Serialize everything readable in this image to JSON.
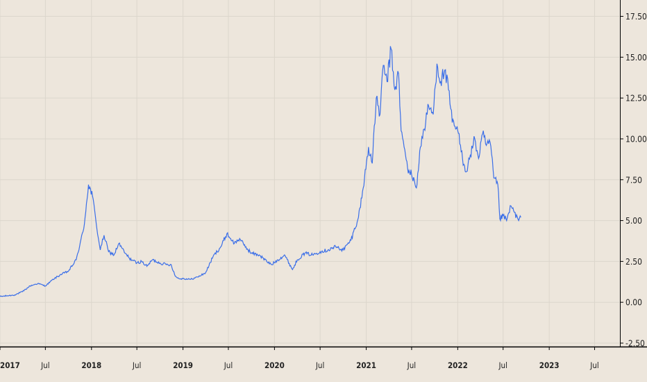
{
  "colors": {
    "background": "#ede6dc",
    "line": "#3a6ee8",
    "grid": "#dcd6cc",
    "axis": "#000000",
    "text": "#222222"
  },
  "chart_data": {
    "type": "line",
    "title": "",
    "xlabel": "",
    "ylabel": "",
    "grid": true,
    "y_axis_position": "right",
    "ylim": [
      -2.5,
      18.5
    ],
    "xlim": [
      "2017-01-01",
      "2023-10-10"
    ],
    "y_ticks": [
      "17.50",
      "15.00",
      "12.50",
      "10.00",
      "7.50",
      "5.00",
      "2.50",
      "0.00",
      "-2.50"
    ],
    "y_tick_values": [
      17.5,
      15,
      12.5,
      10,
      7.5,
      5,
      2.5,
      0,
      -2.5
    ],
    "x_ticks": [
      {
        "label": "2017",
        "date": "2017-01-01",
        "major": true
      },
      {
        "label": "Jul",
        "date": "2017-07-01",
        "major": false
      },
      {
        "label": "2018",
        "date": "2018-01-01",
        "major": true
      },
      {
        "label": "Jul",
        "date": "2018-07-01",
        "major": false
      },
      {
        "label": "2019",
        "date": "2019-01-01",
        "major": true
      },
      {
        "label": "Jul",
        "date": "2019-07-01",
        "major": false
      },
      {
        "label": "2020",
        "date": "2020-01-01",
        "major": true
      },
      {
        "label": "Jul",
        "date": "2020-07-01",
        "major": false
      },
      {
        "label": "2021",
        "date": "2021-01-01",
        "major": true
      },
      {
        "label": "Jul",
        "date": "2021-07-01",
        "major": false
      },
      {
        "label": "2022",
        "date": "2022-01-01",
        "major": true
      },
      {
        "label": "Jul",
        "date": "2022-07-01",
        "major": false
      },
      {
        "label": "2023",
        "date": "2023-01-01",
        "major": true
      },
      {
        "label": "Jul",
        "date": "2023-07-01",
        "major": false
      }
    ],
    "series": [
      {
        "points": [
          [
            "2017-01-01",
            0.35
          ],
          [
            "2017-02-01",
            0.4
          ],
          [
            "2017-03-01",
            0.45
          ],
          [
            "2017-04-01",
            0.65
          ],
          [
            "2017-05-01",
            1.0
          ],
          [
            "2017-06-01",
            1.15
          ],
          [
            "2017-07-01",
            1.0
          ],
          [
            "2017-08-01",
            1.4
          ],
          [
            "2017-09-01",
            1.7
          ],
          [
            "2017-10-01",
            1.9
          ],
          [
            "2017-11-01",
            2.6
          ],
          [
            "2017-12-01",
            4.5
          ],
          [
            "2017-12-20",
            7.2
          ],
          [
            "2018-01-05",
            6.5
          ],
          [
            "2018-01-20",
            4.8
          ],
          [
            "2018-02-05",
            3.2
          ],
          [
            "2018-02-20",
            4.1
          ],
          [
            "2018-03-10",
            3.1
          ],
          [
            "2018-04-01",
            2.9
          ],
          [
            "2018-04-20",
            3.6
          ],
          [
            "2018-05-15",
            3.0
          ],
          [
            "2018-06-01",
            2.7
          ],
          [
            "2018-07-01",
            2.4
          ],
          [
            "2018-07-20",
            2.5
          ],
          [
            "2018-08-10",
            2.2
          ],
          [
            "2018-09-01",
            2.6
          ],
          [
            "2018-10-01",
            2.4
          ],
          [
            "2018-11-01",
            2.3
          ],
          [
            "2018-11-15",
            2.3
          ],
          [
            "2018-12-01",
            1.6
          ],
          [
            "2018-12-15",
            1.45
          ],
          [
            "2019-01-01",
            1.45
          ],
          [
            "2019-02-01",
            1.4
          ],
          [
            "2019-03-01",
            1.55
          ],
          [
            "2019-04-01",
            1.8
          ],
          [
            "2019-05-01",
            2.8
          ],
          [
            "2019-06-01",
            3.4
          ],
          [
            "2019-06-25",
            4.2
          ],
          [
            "2019-07-10",
            3.9
          ],
          [
            "2019-07-25",
            3.6
          ],
          [
            "2019-08-15",
            3.9
          ],
          [
            "2019-09-01",
            3.5
          ],
          [
            "2019-10-01",
            3.0
          ],
          [
            "2019-11-01",
            2.9
          ],
          [
            "2019-12-01",
            2.5
          ],
          [
            "2019-12-20",
            2.3
          ],
          [
            "2020-01-15",
            2.6
          ],
          [
            "2020-02-10",
            2.9
          ],
          [
            "2020-03-13",
            2.0
          ],
          [
            "2020-04-01",
            2.6
          ],
          [
            "2020-05-01",
            3.0
          ],
          [
            "2020-06-01",
            2.9
          ],
          [
            "2020-07-01",
            3.1
          ],
          [
            "2020-08-01",
            3.2
          ],
          [
            "2020-09-01",
            3.4
          ],
          [
            "2020-10-01",
            3.2
          ],
          [
            "2020-11-01",
            3.8
          ],
          [
            "2020-12-01",
            5.2
          ],
          [
            "2020-12-20",
            7.0
          ],
          [
            "2021-01-10",
            9.5
          ],
          [
            "2021-01-25",
            8.5
          ],
          [
            "2021-02-10",
            12.5
          ],
          [
            "2021-02-25",
            11.5
          ],
          [
            "2021-03-10",
            14.5
          ],
          [
            "2021-03-25",
            13.5
          ],
          [
            "2021-04-10",
            15.5
          ],
          [
            "2021-04-25",
            13.0
          ],
          [
            "2021-05-10",
            14.0
          ],
          [
            "2021-05-20",
            10.5
          ],
          [
            "2021-06-01",
            9.5
          ],
          [
            "2021-06-15",
            8.2
          ],
          [
            "2021-07-01",
            7.8
          ],
          [
            "2021-07-20",
            7.0
          ],
          [
            "2021-08-05",
            9.5
          ],
          [
            "2021-08-20",
            10.6
          ],
          [
            "2021-09-07",
            12.0
          ],
          [
            "2021-09-25",
            11.5
          ],
          [
            "2021-10-10",
            14.6
          ],
          [
            "2021-10-25",
            13.5
          ],
          [
            "2021-11-10",
            14.2
          ],
          [
            "2021-11-25",
            13.0
          ],
          [
            "2021-12-10",
            11.0
          ],
          [
            "2022-01-01",
            10.5
          ],
          [
            "2022-01-20",
            8.8
          ],
          [
            "2022-02-05",
            8.0
          ],
          [
            "2022-02-20",
            9.0
          ],
          [
            "2022-03-10",
            10.0
          ],
          [
            "2022-03-25",
            8.8
          ],
          [
            "2022-04-10",
            10.3
          ],
          [
            "2022-04-25",
            9.6
          ],
          [
            "2022-05-10",
            9.8
          ],
          [
            "2022-05-25",
            7.6
          ],
          [
            "2022-06-10",
            7.2
          ],
          [
            "2022-06-18",
            5.1
          ],
          [
            "2022-07-01",
            5.3
          ],
          [
            "2022-07-15",
            5.0
          ],
          [
            "2022-08-01",
            5.9
          ],
          [
            "2022-08-15",
            5.5
          ],
          [
            "2022-09-01",
            5.0
          ],
          [
            "2022-09-10",
            5.2
          ]
        ]
      }
    ]
  }
}
